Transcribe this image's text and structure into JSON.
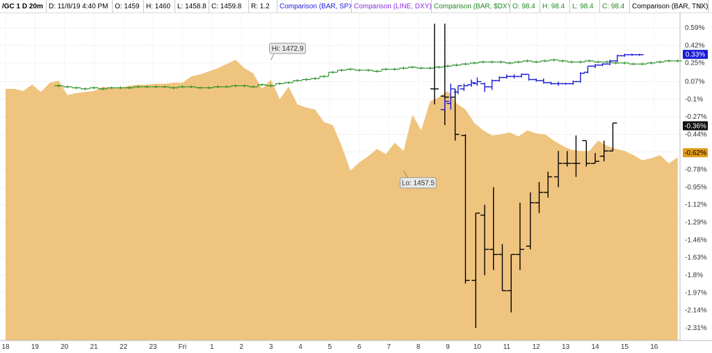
{
  "header": {
    "items": [
      {
        "text": "/GC 1 D 20m",
        "color": "#000000",
        "bold": true,
        "w": 60
      },
      {
        "text": "D: 11/8/19 4:40 PM",
        "color": "#000000",
        "w": 88
      },
      {
        "text": "O: 1459",
        "color": "#000000",
        "w": 38
      },
      {
        "text": "H: 1460",
        "color": "#000000",
        "w": 38
      },
      {
        "text": "L: 1458.8",
        "color": "#000000",
        "w": 42
      },
      {
        "text": "C: 1459.8",
        "color": "#000000",
        "w": 50
      },
      {
        "text": "R: 1.2",
        "color": "#000000",
        "w": 34
      },
      {
        "text": "Comparison (BAR, SPX)",
        "color": "#1a1ad6",
        "w": 100
      },
      {
        "text": "Comparison (LINE, DXY)",
        "color": "#8a2be2",
        "w": 108
      },
      {
        "text": "Comparison (BAR, $DXY)",
        "color": "#1d8a1d",
        "w": 106
      },
      {
        "text": "O: 98.4",
        "color": "#1d8a1d",
        "w": 36
      },
      {
        "text": "H: 98.4",
        "color": "#1d8a1d",
        "w": 36
      },
      {
        "text": "L: 98.4",
        "color": "#1d8a1d",
        "w": 36
      },
      {
        "text": "C: 98.4",
        "color": "#1d8a1d",
        "w": 36
      },
      {
        "text": "Comparison (BAR, TNX)",
        "color": "#000000",
        "w": 106
      }
    ],
    "settings_icon": "sliders-icon"
  },
  "chart_data": {
    "type": "area",
    "x_labels": [
      "18",
      "19",
      "20",
      "21",
      "22",
      "23",
      "Fri",
      "1",
      "2",
      "3",
      "4",
      "5",
      "6",
      "7",
      "8",
      "9",
      "10",
      "11",
      "12",
      "13",
      "14",
      "15",
      "16"
    ],
    "y_ticks": [
      0.59,
      0.42,
      0.25,
      0.07,
      -0.1,
      -0.27,
      -0.44,
      -0.61,
      -0.78,
      -0.95,
      -1.12,
      -1.29,
      -1.46,
      -1.63,
      -1.8,
      -1.97,
      -2.14,
      -2.31
    ],
    "y_tick_labels": [
      "0.59%",
      "0.42%",
      "0.25%",
      "0.07%",
      "-0.1%",
      "-0.27%",
      "-0.44%",
      "-0.61%",
      "-0.78%",
      "-0.95%",
      "-1.12%",
      "-1.29%",
      "-1.46%",
      "-1.63%",
      "-1.8%",
      "-1.97%",
      "-2.14%",
      "-2.31%"
    ],
    "grid": true,
    "x_range": [
      0,
      23
    ],
    "ylim": [
      -2.42,
      0.68
    ],
    "area_color": "#efc47f",
    "gc_area": {
      "name": "/GC",
      "x": [
        0,
        0.3,
        0.6,
        0.9,
        1.2,
        1.5,
        1.8,
        2.1,
        2.4,
        2.7,
        3.0,
        3.3,
        3.6,
        3.9,
        4.2,
        4.5,
        4.8,
        5.1,
        5.4,
        5.7,
        6.0,
        6.3,
        6.6,
        6.9,
        7.2,
        7.5,
        7.8,
        8.1,
        8.4,
        8.7,
        9.0,
        9.3,
        9.6,
        9.9,
        10.2,
        10.5,
        10.8,
        11.1,
        11.4,
        11.7,
        12.0,
        12.3,
        12.6,
        12.9,
        13.2,
        13.5,
        13.8,
        14.1,
        14.4,
        14.7,
        15.0,
        15.3,
        15.6,
        15.9,
        16.2,
        16.5,
        16.8,
        17.1,
        17.4,
        17.7,
        18.0,
        18.3,
        18.6,
        18.9,
        19.2,
        19.5,
        19.8,
        20.1,
        20.4,
        20.7,
        21.0,
        21.3,
        21.6,
        21.9,
        22.2,
        22.5,
        22.8
      ],
      "y": [
        0.0,
        0.0,
        -0.02,
        0.04,
        -0.03,
        0.06,
        0.08,
        -0.06,
        -0.04,
        -0.03,
        -0.02,
        0.02,
        0.01,
        0.01,
        0.03,
        0.04,
        0.04,
        0.05,
        0.05,
        0.06,
        0.06,
        0.12,
        0.14,
        0.17,
        0.2,
        0.24,
        0.28,
        0.2,
        0.15,
        0.0,
        0.09,
        -0.1,
        0.02,
        -0.15,
        -0.18,
        -0.2,
        -0.32,
        -0.35,
        -0.55,
        -0.79,
        -0.71,
        -0.65,
        -0.58,
        -0.63,
        -0.52,
        -0.6,
        -0.25,
        -0.4,
        -0.12,
        -0.08,
        -0.02,
        -0.14,
        -0.2,
        -0.33,
        -0.4,
        -0.45,
        -0.44,
        -0.42,
        -0.46,
        -0.4,
        -0.43,
        -0.44,
        -0.5,
        -0.55,
        -0.59,
        -0.6,
        -0.6,
        -0.5,
        -0.55,
        -0.58,
        -0.6,
        -0.64,
        -0.69,
        -0.67,
        -0.64,
        -0.72,
        -0.66
      ]
    },
    "dxy_bars": {
      "name": "Comparison (BAR, $DXY)",
      "color": "#1d8a1d",
      "x": [
        1.8,
        2.1,
        2.4,
        2.7,
        3.0,
        3.3,
        3.6,
        3.9,
        4.2,
        4.5,
        4.8,
        5.1,
        5.4,
        5.7,
        6.0,
        6.3,
        6.6,
        6.9,
        7.2,
        7.5,
        7.8,
        8.1,
        8.4,
        8.7,
        9.0,
        9.3,
        9.6,
        9.9,
        10.2,
        10.5,
        10.8,
        11.1,
        11.4,
        11.7,
        12.0,
        12.3,
        12.6,
        12.9,
        13.2,
        13.5,
        13.8,
        14.1,
        14.4,
        14.7,
        15.0,
        15.3,
        15.6,
        15.9,
        16.2,
        16.5,
        16.8,
        17.1,
        17.4,
        17.7,
        18.0,
        18.3,
        18.6,
        18.9,
        19.2,
        19.5,
        19.8,
        20.1,
        20.4,
        20.7,
        21.0,
        21.3,
        21.6,
        21.9,
        22.2,
        22.5,
        22.8
      ],
      "y": [
        0.03,
        0.02,
        0.01,
        0.0,
        0.01,
        0.0,
        0.01,
        0.01,
        0.01,
        0.02,
        0.02,
        0.02,
        0.02,
        0.01,
        0.02,
        0.02,
        0.01,
        0.01,
        0.02,
        0.02,
        0.03,
        0.03,
        0.02,
        0.04,
        0.03,
        0.05,
        0.06,
        0.08,
        0.09,
        0.1,
        0.12,
        0.16,
        0.18,
        0.19,
        0.18,
        0.18,
        0.17,
        0.19,
        0.19,
        0.2,
        0.21,
        0.2,
        0.2,
        0.21,
        0.22,
        0.23,
        0.24,
        0.25,
        0.26,
        0.26,
        0.26,
        0.25,
        0.26,
        0.27,
        0.26,
        0.27,
        0.28,
        0.27,
        0.26,
        0.26,
        0.27,
        0.26,
        0.26,
        0.25,
        0.25,
        0.24,
        0.24,
        0.25,
        0.26,
        0.27,
        0.27
      ]
    },
    "spx_bars": {
      "name": "Comparison (BAR, SPX)",
      "color": "#1a1ad6",
      "bars": [
        {
          "x": 14.9,
          "h": -0.1,
          "l": -0.2,
          "o": -0.2,
          "c": -0.12
        },
        {
          "x": 15.1,
          "h": 0.05,
          "l": -0.2,
          "o": -0.14,
          "c": 0.0
        },
        {
          "x": 15.35,
          "h": 0.03,
          "l": -0.05,
          "o": -0.03,
          "c": 0.03
        },
        {
          "x": 15.55,
          "h": 0.05,
          "l": -0.02,
          "o": 0.0,
          "c": 0.03
        },
        {
          "x": 15.8,
          "h": 0.09,
          "l": 0.02,
          "o": 0.04,
          "c": 0.06
        },
        {
          "x": 16.0,
          "h": 0.11,
          "l": 0.03,
          "o": 0.05,
          "c": 0.07
        },
        {
          "x": 16.25,
          "h": 0.06,
          "l": -0.03,
          "o": 0.05,
          "c": 0.02
        },
        {
          "x": 16.5,
          "h": 0.09,
          "l": -0.01,
          "o": 0.02,
          "c": 0.08
        },
        {
          "x": 16.75,
          "h": 0.12,
          "l": 0.07,
          "o": 0.08,
          "c": 0.11
        },
        {
          "x": 17.0,
          "h": 0.14,
          "l": 0.1,
          "o": 0.11,
          "c": 0.12
        },
        {
          "x": 17.25,
          "h": 0.14,
          "l": 0.1,
          "o": 0.12,
          "c": 0.12
        },
        {
          "x": 17.5,
          "h": 0.15,
          "l": 0.11,
          "o": 0.12,
          "c": 0.14
        },
        {
          "x": 17.75,
          "h": 0.14,
          "l": 0.08,
          "o": 0.14,
          "c": 0.09
        },
        {
          "x": 18.0,
          "h": 0.1,
          "l": 0.07,
          "o": 0.09,
          "c": 0.08
        },
        {
          "x": 18.25,
          "h": 0.1,
          "l": 0.05,
          "o": 0.08,
          "c": 0.06
        },
        {
          "x": 18.5,
          "h": 0.07,
          "l": 0.04,
          "o": 0.06,
          "c": 0.05
        },
        {
          "x": 18.75,
          "h": 0.07,
          "l": 0.03,
          "o": 0.05,
          "c": 0.05
        },
        {
          "x": 19.0,
          "h": 0.06,
          "l": 0.04,
          "o": 0.05,
          "c": 0.05
        },
        {
          "x": 19.25,
          "h": 0.08,
          "l": 0.04,
          "o": 0.05,
          "c": 0.07
        },
        {
          "x": 19.5,
          "h": 0.16,
          "l": 0.06,
          "o": 0.07,
          "c": 0.15
        },
        {
          "x": 19.75,
          "h": 0.22,
          "l": 0.15,
          "o": 0.16,
          "c": 0.22
        },
        {
          "x": 20.0,
          "h": 0.24,
          "l": 0.2,
          "o": 0.22,
          "c": 0.23
        },
        {
          "x": 20.25,
          "h": 0.25,
          "l": 0.22,
          "o": 0.23,
          "c": 0.24
        },
        {
          "x": 20.5,
          "h": 0.28,
          "l": 0.23,
          "o": 0.24,
          "c": 0.27
        },
        {
          "x": 20.75,
          "h": 0.33,
          "l": 0.26,
          "o": 0.27,
          "c": 0.32
        },
        {
          "x": 21.0,
          "h": 0.34,
          "l": 0.31,
          "o": 0.32,
          "c": 0.33
        },
        {
          "x": 21.25,
          "h": 0.34,
          "l": 0.32,
          "o": 0.33,
          "c": 0.33
        },
        {
          "x": 21.5,
          "h": 0.34,
          "l": 0.32,
          "o": 0.33,
          "c": 0.33
        }
      ]
    },
    "tnx_bars": {
      "name": "Comparison (BAR, TNX)",
      "color": "#000000",
      "bars": [
        {
          "x": 14.55,
          "h": 0.63,
          "l": -0.15,
          "o": 0.0,
          "c": 0.0
        },
        {
          "x": 14.9,
          "h": 0.63,
          "l": -0.35,
          "o": -0.07,
          "c": -0.08
        },
        {
          "x": 15.25,
          "h": 0.0,
          "l": -0.5,
          "o": -0.08,
          "c": -0.44
        },
        {
          "x": 15.6,
          "h": -0.44,
          "l": -1.88,
          "o": -0.45,
          "c": -1.85
        },
        {
          "x": 15.95,
          "h": -1.2,
          "l": -2.31,
          "o": -1.85,
          "c": -1.2
        },
        {
          "x": 16.25,
          "h": -1.12,
          "l": -1.8,
          "o": -1.22,
          "c": -1.55
        },
        {
          "x": 16.55,
          "h": -0.95,
          "l": -1.75,
          "o": -1.55,
          "c": -1.6
        },
        {
          "x": 16.85,
          "h": -1.5,
          "l": -1.95,
          "o": -1.6,
          "c": -1.95
        },
        {
          "x": 17.15,
          "h": -1.6,
          "l": -2.16,
          "o": -1.95,
          "c": -1.6
        },
        {
          "x": 17.45,
          "h": -1.1,
          "l": -1.75,
          "o": -1.6,
          "c": -1.55
        },
        {
          "x": 17.8,
          "h": -1.0,
          "l": -1.55,
          "o": -1.52,
          "c": -1.1
        },
        {
          "x": 18.1,
          "h": -0.9,
          "l": -1.2,
          "o": -1.1,
          "c": -1.0
        },
        {
          "x": 18.4,
          "h": -0.8,
          "l": -1.05,
          "o": -1.0,
          "c": -0.85
        },
        {
          "x": 18.75,
          "h": -0.6,
          "l": -0.95,
          "o": -0.85,
          "c": -0.72
        },
        {
          "x": 19.05,
          "h": -0.6,
          "l": -0.75,
          "o": -0.72,
          "c": -0.72
        },
        {
          "x": 19.35,
          "h": -0.45,
          "l": -0.85,
          "o": -0.72,
          "c": -0.72
        },
        {
          "x": 19.7,
          "h": -0.5,
          "l": -0.75,
          "o": -0.5,
          "c": -0.72
        },
        {
          "x": 20.0,
          "h": -0.62,
          "l": -0.72,
          "o": -0.72,
          "c": -0.7
        },
        {
          "x": 20.3,
          "h": -0.5,
          "l": -0.7,
          "o": -0.65,
          "c": -0.6
        },
        {
          "x": 20.6,
          "h": -0.33,
          "l": -0.6,
          "o": -0.6,
          "c": -0.33
        }
      ]
    },
    "annotations": [
      {
        "name": "high-label",
        "text": "Hi: 1472.9",
        "at_x": 9.0,
        "at_y": 0.28
      },
      {
        "name": "low-label",
        "text": "Lo: 1457.5",
        "at_x": 13.5,
        "at_y": -0.79
      }
    ],
    "price_badges": [
      {
        "name": "spx-badge",
        "text": "0.33%",
        "value": 0.33,
        "bg": "#1a1ad6",
        "fg": "#ffffff"
      },
      {
        "name": "tnx-badge",
        "text": "-0.36%",
        "value": -0.36,
        "bg": "#111111",
        "fg": "#ffffff"
      },
      {
        "name": "gc-badge",
        "text": "-0.62%",
        "value": -0.62,
        "bg": "#e39a1c",
        "fg": "#000000"
      }
    ]
  }
}
